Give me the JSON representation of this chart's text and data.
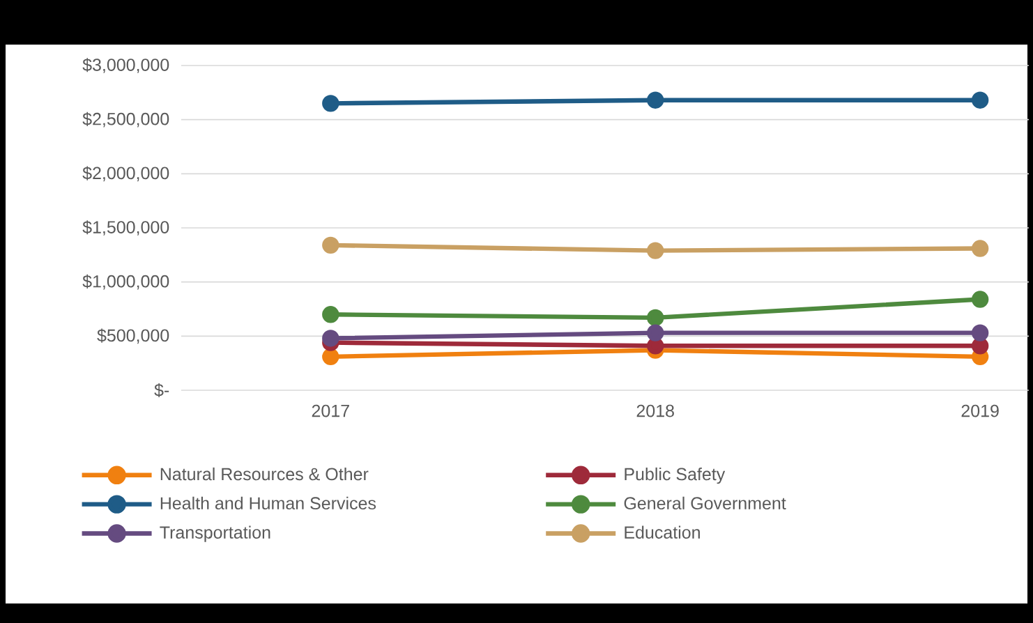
{
  "chart_data": {
    "type": "line",
    "categories": [
      "2017",
      "2018",
      "2019"
    ],
    "series": [
      {
        "name": "Natural Resources & Other",
        "color": "#f08010",
        "values": [
          310000,
          370000,
          310000
        ]
      },
      {
        "name": "Public Safety",
        "color": "#9e2a3a",
        "values": [
          440000,
          410000,
          410000
        ]
      },
      {
        "name": "Health and Human Services",
        "color": "#1f5c87",
        "values": [
          2650000,
          2680000,
          2680000
        ]
      },
      {
        "name": "General Government",
        "color": "#4e8a3e",
        "values": [
          700000,
          670000,
          840000
        ]
      },
      {
        "name": "Transportation",
        "color": "#654b80",
        "values": [
          480000,
          530000,
          530000
        ]
      },
      {
        "name": "Education",
        "color": "#c9a063",
        "values": [
          1340000,
          1290000,
          1310000
        ]
      }
    ],
    "ylim": [
      0,
      3000000
    ],
    "yticks": [
      {
        "value": 0,
        "label": "$-"
      },
      {
        "value": 500000,
        "label": "$500,000"
      },
      {
        "value": 1000000,
        "label": "$1,000,000"
      },
      {
        "value": 1500000,
        "label": "$1,500,000"
      },
      {
        "value": 2000000,
        "label": "$2,000,000"
      },
      {
        "value": 2500000,
        "label": "$2,500,000"
      },
      {
        "value": 3000000,
        "label": "$3,000,000"
      }
    ],
    "grid": "y",
    "legend": "bottom",
    "marker": "circle"
  }
}
